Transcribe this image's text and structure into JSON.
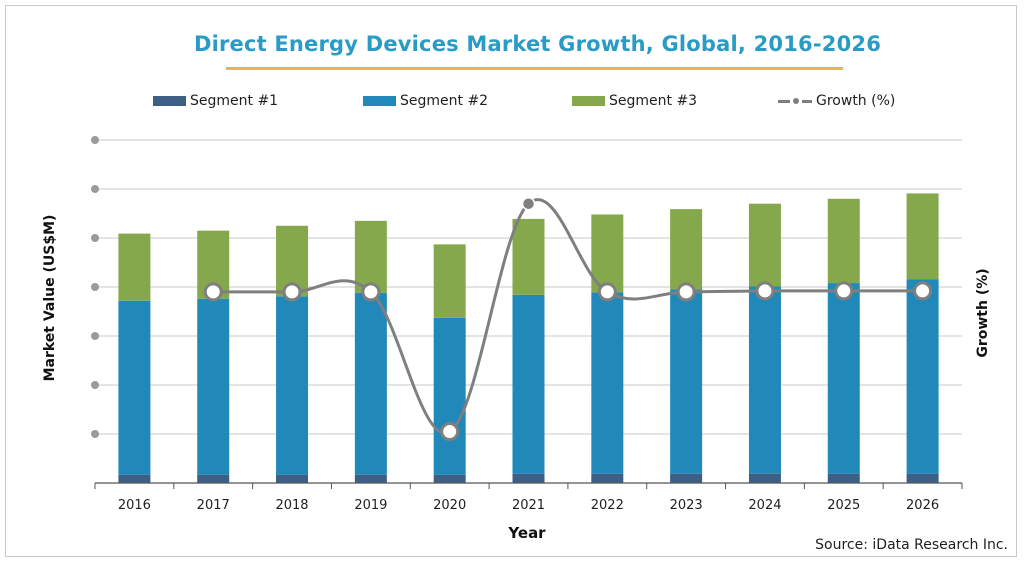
{
  "title": "Direct Energy Devices Market Growth, Global, 2016-2026",
  "source": "Source: iData Research Inc.",
  "colors": {
    "segment1": "#3d5f86",
    "segment2": "#2189b9",
    "segment3": "#86a84c",
    "growth": "#7f7f7f",
    "grid": "#c9c9c9",
    "title": "#2a9bc4",
    "title_underline": "#f1b04c"
  },
  "chart_data": {
    "type": "bar",
    "stacked": true,
    "title": "Direct Energy Devices Market Growth, Global, 2016-2026",
    "xlabel": "Year",
    "ylabel": "Market Value (US$M)",
    "y2label": "Growth (%)",
    "categories": [
      "2016",
      "2017",
      "2018",
      "2019",
      "2020",
      "2021",
      "2022",
      "2023",
      "2024",
      "2025",
      "2026"
    ],
    "ylim": [
      0,
      7
    ],
    "y2lim": [
      -3.3,
      3.7
    ],
    "grid": true,
    "legend_position": "top",
    "series": [
      {
        "name": "Segment #1",
        "type": "bar",
        "values": [
          0.17,
          0.17,
          0.17,
          0.17,
          0.17,
          0.19,
          0.19,
          0.19,
          0.19,
          0.19,
          0.19
        ]
      },
      {
        "name": "Segment #2",
        "type": "bar",
        "values": [
          3.55,
          3.59,
          3.64,
          3.71,
          3.2,
          3.65,
          3.7,
          3.76,
          3.82,
          3.89,
          3.97
        ]
      },
      {
        "name": "Segment #3",
        "type": "bar",
        "values": [
          1.37,
          1.39,
          1.44,
          1.47,
          1.5,
          1.55,
          1.59,
          1.64,
          1.69,
          1.72,
          1.75
        ]
      },
      {
        "name": "Growth (%)",
        "type": "line",
        "values": [
          null,
          0.6,
          0.6,
          0.6,
          -2.25,
          2.4,
          0.6,
          0.6,
          0.62,
          0.62,
          0.62
        ]
      }
    ]
  }
}
